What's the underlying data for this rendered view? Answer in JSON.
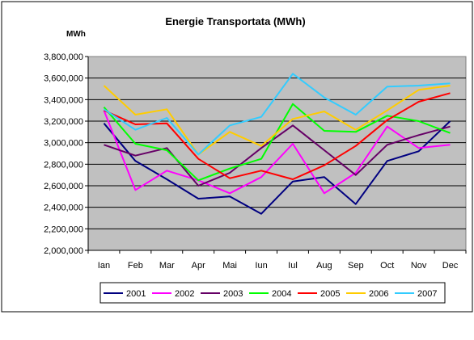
{
  "chart_data": {
    "type": "line",
    "title": "Energie Transportata (MWh)",
    "unit_label": "MWh",
    "xlabel": "",
    "ylabel": "",
    "categories": [
      "Ian",
      "Feb",
      "Mar",
      "Apr",
      "Mai",
      "Iun",
      "Iul",
      "Aug",
      "Sep",
      "Oct",
      "Nov",
      "Dec"
    ],
    "ylim": [
      2000000,
      3800000
    ],
    "yticks": [
      2000000,
      2200000,
      2400000,
      2600000,
      2800000,
      3000000,
      3200000,
      3400000,
      3600000,
      3800000
    ],
    "ytick_labels": [
      "2,000,000",
      "2,200,000",
      "2,400,000",
      "2,600,000",
      "2,800,000",
      "3,000,000",
      "3,200,000",
      "3,400,000",
      "3,600,000",
      "3,800,000"
    ],
    "grid": "horizontal",
    "plot_background": "#C0C0C0",
    "legend_position": "bottom",
    "series": [
      {
        "name": "2001",
        "color": "#000080",
        "values": [
          3180000,
          2830000,
          2660000,
          2480000,
          2500000,
          2340000,
          2640000,
          2680000,
          2430000,
          2830000,
          2920000,
          3200000
        ]
      },
      {
        "name": "2002",
        "color": "#FF00FF",
        "values": [
          3300000,
          2560000,
          2740000,
          2650000,
          2530000,
          2680000,
          2990000,
          2530000,
          2720000,
          3150000,
          2950000,
          2980000
        ]
      },
      {
        "name": "2003",
        "color": "#660066",
        "values": [
          2980000,
          2880000,
          2950000,
          2600000,
          2720000,
          2950000,
          3160000,
          2930000,
          2700000,
          2980000,
          3070000,
          3150000
        ]
      },
      {
        "name": "2004",
        "color": "#00FF00",
        "values": [
          3330000,
          2990000,
          2930000,
          2650000,
          2760000,
          2850000,
          3360000,
          3110000,
          3100000,
          3250000,
          3200000,
          3090000
        ]
      },
      {
        "name": "2005",
        "color": "#FF0000",
        "values": [
          3300000,
          3170000,
          3180000,
          2850000,
          2670000,
          2740000,
          2660000,
          2790000,
          2970000,
          3210000,
          3380000,
          3460000
        ]
      },
      {
        "name": "2006",
        "color": "#FFCC00",
        "values": [
          3530000,
          3260000,
          3310000,
          2890000,
          3100000,
          2970000,
          3220000,
          3290000,
          3120000,
          3300000,
          3490000,
          3530000
        ]
      },
      {
        "name": "2007",
        "color": "#33CCFF",
        "values": [
          3310000,
          3120000,
          3230000,
          2890000,
          3160000,
          3240000,
          3640000,
          3420000,
          3260000,
          3520000,
          3530000,
          3550000
        ]
      }
    ]
  }
}
